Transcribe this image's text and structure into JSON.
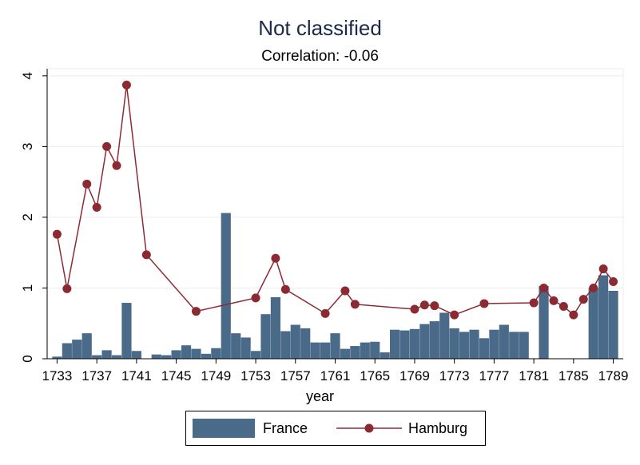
{
  "chart_data": {
    "type": "bar+line",
    "title": "Not classified",
    "subtitle": "Correlation: -0.06",
    "xlabel": "year",
    "ylabel": "",
    "xlim": [
      1732,
      1790
    ],
    "ylim": [
      0,
      4.1
    ],
    "x_ticks": [
      1733,
      1737,
      1741,
      1745,
      1749,
      1753,
      1757,
      1761,
      1765,
      1769,
      1773,
      1777,
      1781,
      1785,
      1789
    ],
    "y_ticks": [
      0,
      1,
      2,
      3,
      4
    ],
    "legend_position": "bottom",
    "colors": {
      "france": "#4a6a8a",
      "hamburg": "#8c2a33",
      "title": "#1c2a4a"
    },
    "series": [
      {
        "name": "France",
        "kind": "bar",
        "points": [
          [
            1733,
            0.03
          ],
          [
            1734,
            0.22
          ],
          [
            1735,
            0.27
          ],
          [
            1736,
            0.36
          ],
          [
            1737,
            0.05
          ],
          [
            1738,
            0.12
          ],
          [
            1739,
            0.05
          ],
          [
            1740,
            0.79
          ],
          [
            1741,
            0.11
          ],
          [
            1743,
            0.06
          ],
          [
            1744,
            0.05
          ],
          [
            1745,
            0.12
          ],
          [
            1746,
            0.19
          ],
          [
            1747,
            0.14
          ],
          [
            1748,
            0.07
          ],
          [
            1749,
            0.15
          ],
          [
            1750,
            2.06
          ],
          [
            1751,
            0.36
          ],
          [
            1752,
            0.3
          ],
          [
            1753,
            0.11
          ],
          [
            1754,
            0.63
          ],
          [
            1755,
            0.87
          ],
          [
            1756,
            0.39
          ],
          [
            1757,
            0.48
          ],
          [
            1758,
            0.43
          ],
          [
            1759,
            0.23
          ],
          [
            1760,
            0.23
          ],
          [
            1761,
            0.36
          ],
          [
            1762,
            0.14
          ],
          [
            1763,
            0.18
          ],
          [
            1764,
            0.23
          ],
          [
            1765,
            0.24
          ],
          [
            1766,
            0.09
          ],
          [
            1767,
            0.41
          ],
          [
            1768,
            0.4
          ],
          [
            1769,
            0.42
          ],
          [
            1770,
            0.49
          ],
          [
            1771,
            0.53
          ],
          [
            1772,
            0.65
          ],
          [
            1773,
            0.43
          ],
          [
            1774,
            0.38
          ],
          [
            1775,
            0.41
          ],
          [
            1776,
            0.29
          ],
          [
            1777,
            0.41
          ],
          [
            1778,
            0.48
          ],
          [
            1779,
            0.38
          ],
          [
            1780,
            0.38
          ],
          [
            1782,
            1.03
          ],
          [
            1787,
            1.0
          ],
          [
            1788,
            1.18
          ],
          [
            1789,
            0.96
          ]
        ]
      },
      {
        "name": "Hamburg",
        "kind": "line",
        "points": [
          [
            1733,
            1.76
          ],
          [
            1734,
            0.99
          ],
          [
            1736,
            2.47
          ],
          [
            1737,
            2.14
          ],
          [
            1738,
            3.0
          ],
          [
            1739,
            2.73
          ],
          [
            1740,
            3.87
          ],
          [
            1742,
            1.47
          ],
          [
            1747,
            0.67
          ],
          [
            1753,
            0.86
          ],
          [
            1755,
            1.42
          ],
          [
            1756,
            0.98
          ],
          [
            1760,
            0.64
          ],
          [
            1762,
            0.96
          ],
          [
            1763,
            0.77
          ],
          [
            1769,
            0.7
          ],
          [
            1770,
            0.76
          ],
          [
            1771,
            0.75
          ],
          [
            1773,
            0.62
          ],
          [
            1776,
            0.78
          ],
          [
            1781,
            0.79
          ],
          [
            1782,
            1.0
          ],
          [
            1783,
            0.82
          ],
          [
            1784,
            0.74
          ],
          [
            1785,
            0.62
          ],
          [
            1786,
            0.84
          ],
          [
            1787,
            1.0
          ],
          [
            1788,
            1.27
          ],
          [
            1789,
            1.09
          ]
        ]
      }
    ]
  }
}
